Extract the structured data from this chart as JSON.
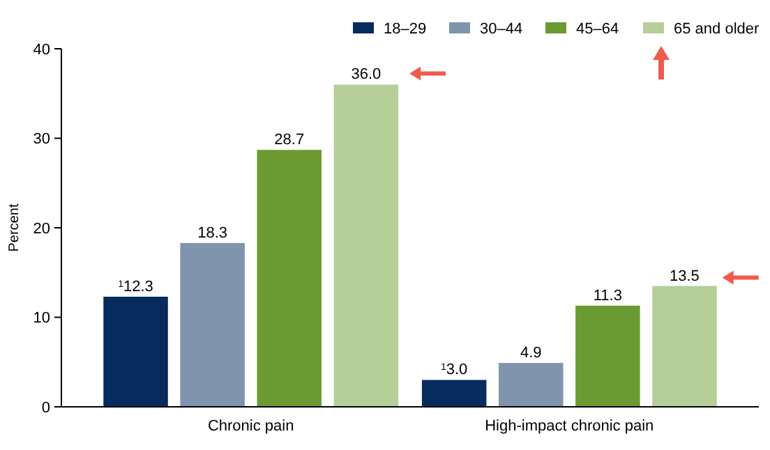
{
  "chart_data": {
    "type": "bar",
    "ylabel": "Percent",
    "categories": [
      "Chronic pain",
      "High-impact chronic pain"
    ],
    "series": [
      {
        "name": "18–29",
        "color": "#062b5c",
        "values": [
          12.3,
          3.0
        ],
        "value_labels": [
          "$^{1}$12.3",
          "$^{1}$3.0"
        ]
      },
      {
        "name": "30–44",
        "color": "#8094ae",
        "values": [
          18.3,
          4.9
        ],
        "value_labels": [
          "18.3",
          "4.9"
        ]
      },
      {
        "name": "45–64",
        "color": "#6b9a33",
        "values": [
          28.7,
          11.3
        ],
        "value_labels": [
          "28.7",
          "11.3"
        ]
      },
      {
        "name": "65 and older",
        "color": "#b6cf99",
        "values": [
          36.0,
          13.5
        ],
        "value_labels": [
          "36.0",
          "13.5"
        ]
      }
    ],
    "ylim": [
      0,
      40
    ],
    "yticks": [
      0,
      10,
      20,
      30,
      40
    ],
    "grid": false,
    "legend": "top right"
  }
}
